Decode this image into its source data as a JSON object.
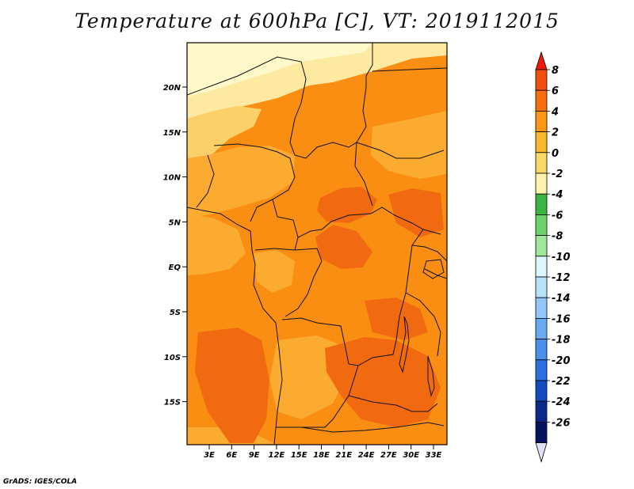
{
  "title": "Temperature at 600hPa [C], VT: 2019112015",
  "credit": "GrADS: IGES/COLA",
  "map": {
    "lat_labels": [
      "20N",
      "15N",
      "10N",
      "5N",
      "EQ",
      "5S",
      "10S",
      "15S"
    ],
    "lon_labels": [
      "3E",
      "6E",
      "9E",
      "12E",
      "15E",
      "18E",
      "21E",
      "24E",
      "27E",
      "30E",
      "33E"
    ],
    "field_colors": {
      "warm_6": "#f26a10",
      "warm_4": "#fa8e12",
      "warm_2": "#fbab30",
      "warm_0": "#fbd068",
      "cool_m2": "#fde9a0",
      "cool_m4": "#fff8c8"
    }
  },
  "colorbar": {
    "labels": [
      "8",
      "6",
      "4",
      "2",
      "0",
      "-2",
      "-4",
      "-6",
      "-8",
      "-10",
      "-12",
      "-14",
      "-16",
      "-18",
      "-20",
      "-22",
      "-24",
      "-26"
    ],
    "colors": [
      "#f01a0a",
      "#f44e0e",
      "#f96e10",
      "#fb9616",
      "#fbb730",
      "#fbd768",
      "#fdf3ad",
      "#3cb444",
      "#6ad46a",
      "#9ee89a",
      "#dcf6ff",
      "#b6e2fa",
      "#92c8f8",
      "#6aaaf2",
      "#4890ec",
      "#2a6ee0",
      "#144cc0",
      "#0a2a8c",
      "#061460",
      "#e0e0f8"
    ]
  }
}
